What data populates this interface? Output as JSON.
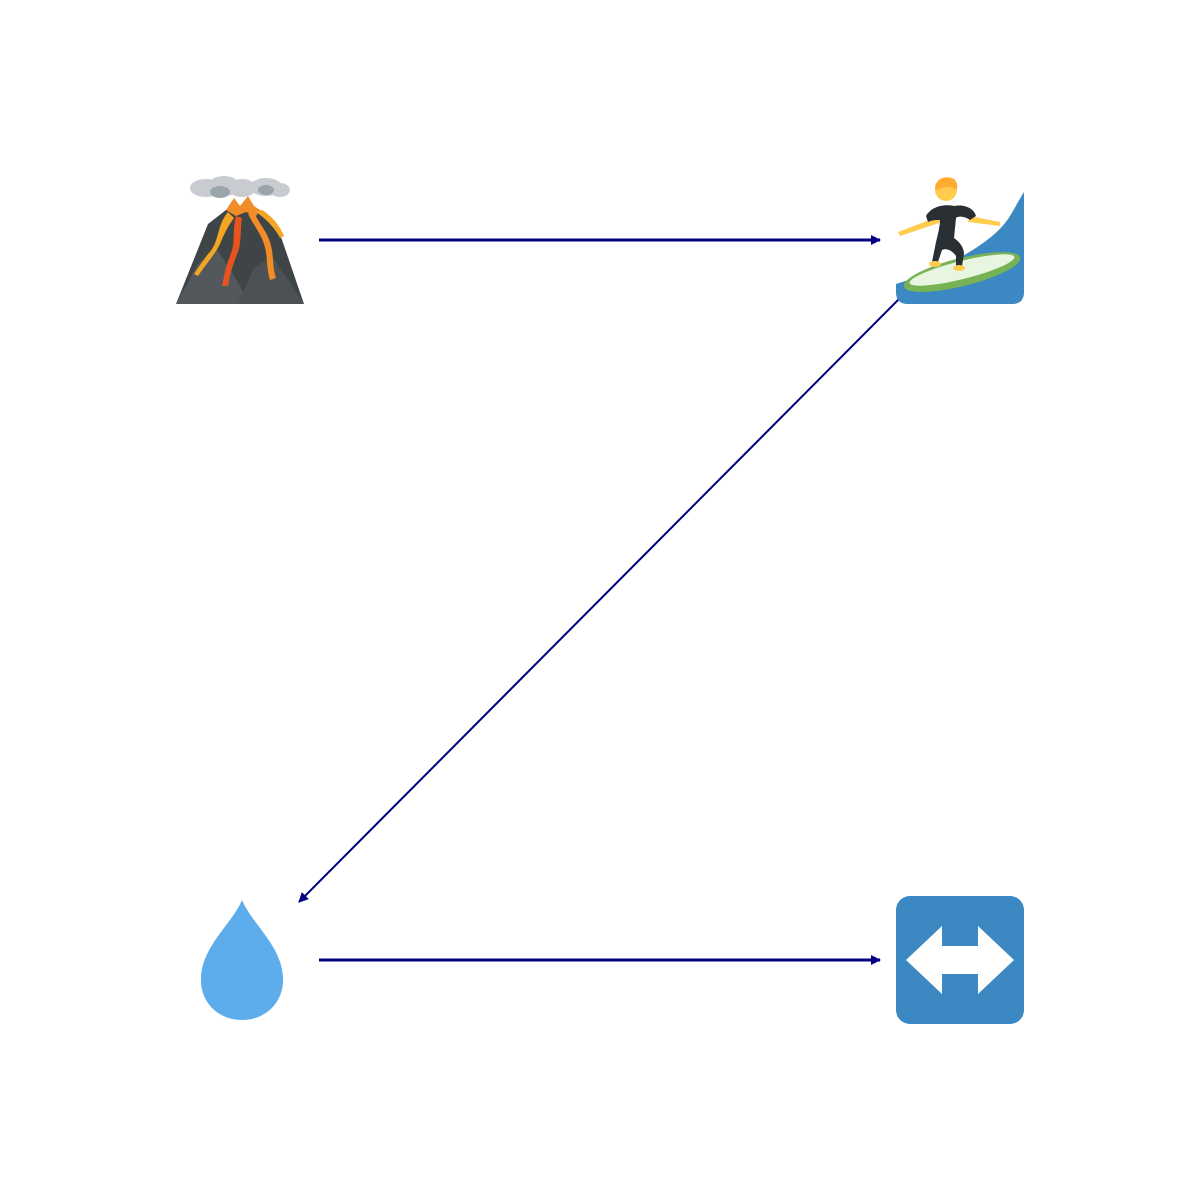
{
  "diagram": {
    "edge_color": "#000080",
    "nodes": [
      {
        "id": "volcano",
        "icon": "volcano-icon"
      },
      {
        "id": "surfer",
        "icon": "surfer-icon"
      },
      {
        "id": "droplet",
        "icon": "droplet-icon"
      },
      {
        "id": "lr-arrow",
        "icon": "left-right-arrow-icon"
      }
    ],
    "edges": [
      {
        "from": "volcano",
        "to": "surfer"
      },
      {
        "from": "surfer",
        "to": "droplet"
      },
      {
        "from": "droplet",
        "to": "lr-arrow"
      }
    ]
  }
}
